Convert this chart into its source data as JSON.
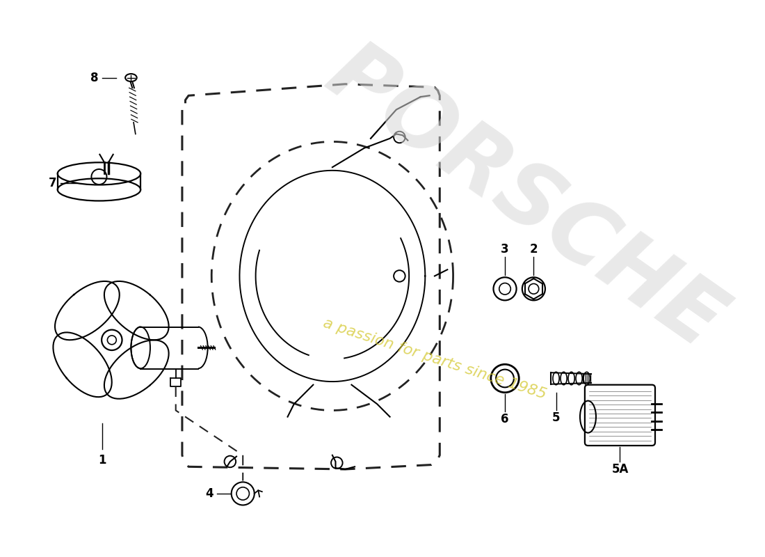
{
  "background_color": "#ffffff",
  "line_color": "#000000",
  "dash_color": "#222222",
  "watermark1": "PORSCHE",
  "watermark2": "a passion for parts since 1985",
  "figsize": [
    11.0,
    8.0
  ],
  "dpi": 100
}
